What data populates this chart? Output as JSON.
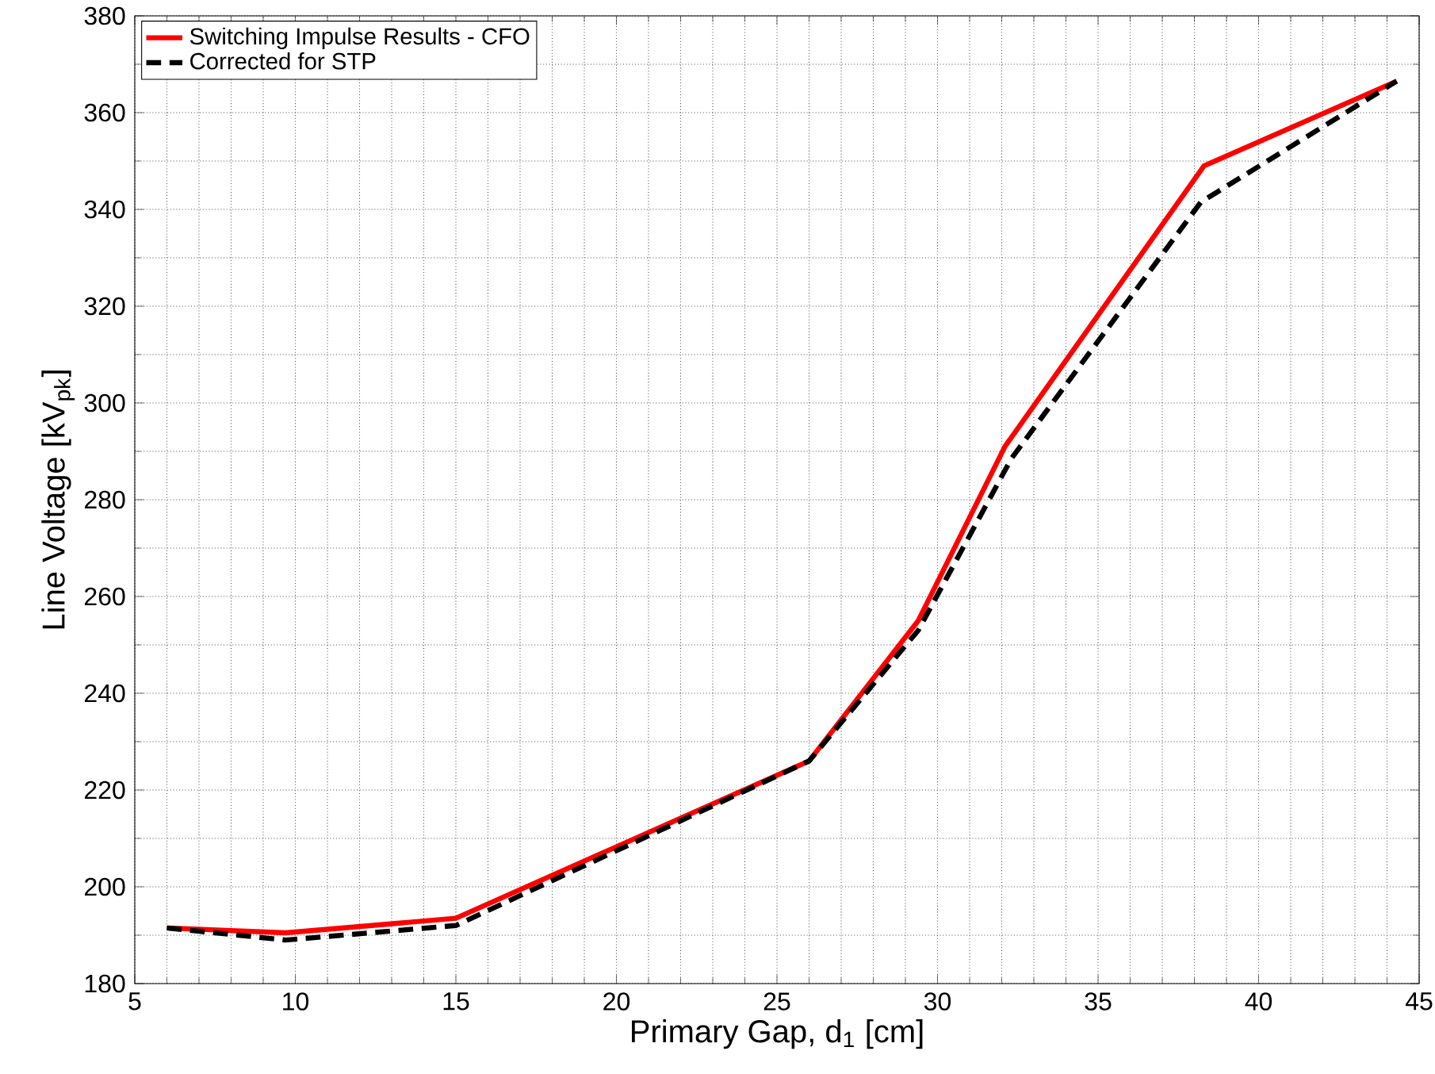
{
  "chart_data": {
    "type": "line",
    "xlabel": "Primary Gap, d$_{1}$ [cm]",
    "ylabel": "Line Voltage [kV$_{pk}$]",
    "x": [
      6,
      9.7,
      15,
      26,
      29.4,
      32.1,
      38.3,
      44.3
    ],
    "series": [
      {
        "name": "Switching Impulse Results - CFO",
        "color": "#ff0000",
        "line_style": "solid",
        "values": [
          191.5,
          190.5,
          193.5,
          226,
          255,
          291,
          349,
          366.5
        ]
      },
      {
        "name": "Corrected for STP",
        "color": "#000000",
        "line_style": "dashed",
        "x": [
          6,
          9.7,
          15,
          26,
          29.4,
          32.3,
          38.2,
          44.3
        ],
        "values": [
          191.5,
          189,
          192,
          226,
          253,
          288.5,
          341.5,
          366.5
        ]
      }
    ],
    "xlim": [
      5,
      45
    ],
    "ylim": [
      180,
      380
    ],
    "xticks": [
      5,
      10,
      15,
      20,
      25,
      30,
      35,
      40,
      45
    ],
    "yticks": [
      180,
      200,
      220,
      240,
      260,
      280,
      300,
      320,
      340,
      360,
      380
    ],
    "grid": true,
    "legend": "top left",
    "marker": "none"
  }
}
